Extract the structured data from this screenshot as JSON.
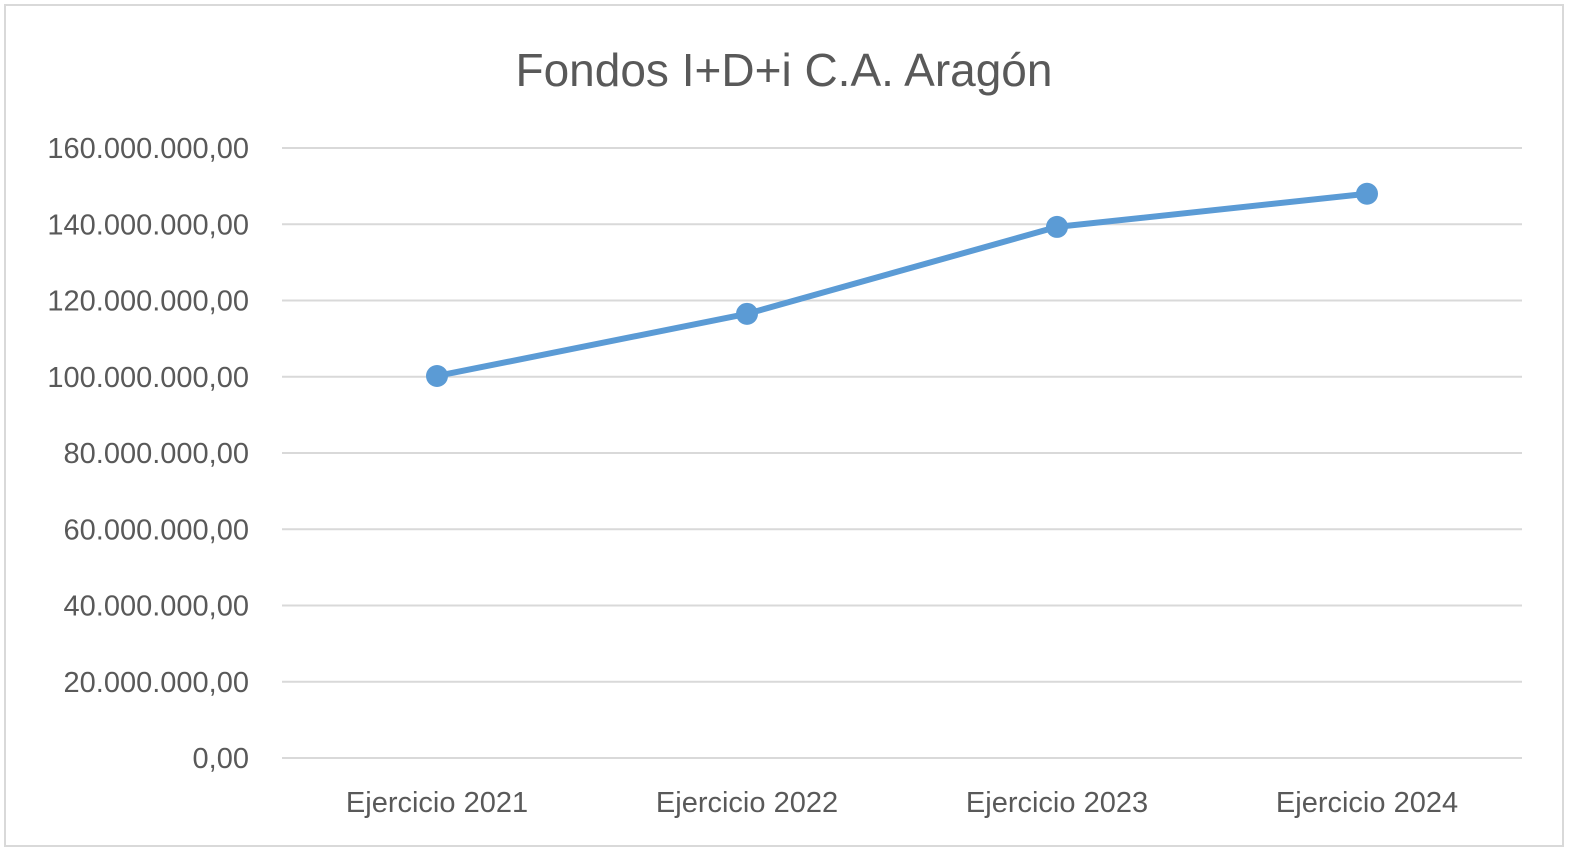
{
  "chart_data": {
    "type": "line",
    "title": "Fondos I+D+i C.A. Aragón",
    "xlabel": "",
    "ylabel": "",
    "categories": [
      "Ejercicio 2021",
      "Ejercicio 2022",
      "Ejercicio 2023",
      "Ejercicio 2024"
    ],
    "series": [
      {
        "values": [
          100200000,
          116500000,
          139300000,
          148000000
        ],
        "color": "#5b9bd5"
      }
    ],
    "ylim": [
      0,
      160000000
    ],
    "yticks": [
      0,
      20000000,
      40000000,
      60000000,
      80000000,
      100000000,
      120000000,
      140000000,
      160000000
    ],
    "ytick_labels": [
      "0,00",
      "20.000.000,00",
      "40.000.000,00",
      "60.000.000,00",
      "80.000.000,00",
      "100.000.000,00",
      "120.000.000,00",
      "140.000.000,00",
      "160.000.000,00"
    ],
    "grid": true,
    "legend": "none",
    "markers": true
  }
}
